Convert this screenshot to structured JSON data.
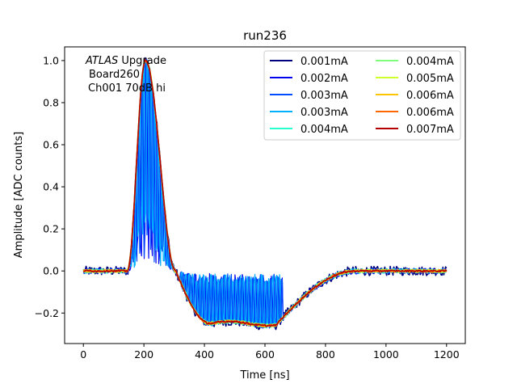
{
  "chart_data": {
    "type": "line",
    "title": "run236",
    "xlabel": "Time [ns]",
    "ylabel": "Amplitude [ADC counts]",
    "xlim": [
      -62,
      1262
    ],
    "ylim": [
      -0.345,
      1.065
    ],
    "xticks": [
      0,
      200,
      400,
      600,
      800,
      1000,
      1200
    ],
    "yticks": [
      -0.2,
      0.0,
      0.2,
      0.4,
      0.6,
      0.8,
      1.0
    ],
    "xtick_labels": [
      "0",
      "200",
      "400",
      "600",
      "800",
      "1000",
      "1200"
    ],
    "ytick_labels": [
      "−0.2",
      "0.0",
      "0.2",
      "0.4",
      "0.6",
      "0.8",
      "1.0"
    ],
    "grid": false,
    "legend_position": "top-right",
    "annotation": {
      "italic_part": "ATLAS",
      "line1_rest": " Upgrade",
      "line2": "Board260",
      "line3": "Ch001 70dB hi"
    },
    "pulse_shape": {
      "baseline": 0.0,
      "rise_start_ns": 145,
      "peak_ns": 205,
      "peak_value": 1.0,
      "zero_cross_ns": 305,
      "undershoot_value": -0.25,
      "undershoot_plateau_ns": [
        420,
        640
      ],
      "recovery_end_ns": 900,
      "range_ns": [
        0,
        1200
      ],
      "sample_step_ns": 3
    },
    "series": [
      {
        "name": "0.001mA",
        "color": "#00007f",
        "noise": 0.022,
        "stripes": false
      },
      {
        "name": "0.002mA",
        "color": "#0000f1",
        "noise": 0.014,
        "stripes": true
      },
      {
        "name": "0.003mA",
        "color": "#004dff",
        "noise": 0.012,
        "stripes": true
      },
      {
        "name": "0.003mA",
        "color": "#00b1ff",
        "noise": 0.012,
        "stripes": true
      },
      {
        "name": "0.004mA",
        "color": "#29ffce",
        "noise": 0.01,
        "stripes": false
      },
      {
        "name": "0.004mA",
        "color": "#7dff7a",
        "noise": 0.008,
        "stripes": false
      },
      {
        "name": "0.005mA",
        "color": "#ceff29",
        "noise": 0.007,
        "stripes": false
      },
      {
        "name": "0.006mA",
        "color": "#ffc400",
        "noise": 0.006,
        "stripes": false
      },
      {
        "name": "0.006mA",
        "color": "#ff6800",
        "noise": 0.006,
        "stripes": false
      },
      {
        "name": "0.007mA",
        "color": "#b20000",
        "noise": 0.004,
        "stripes": false
      }
    ]
  }
}
